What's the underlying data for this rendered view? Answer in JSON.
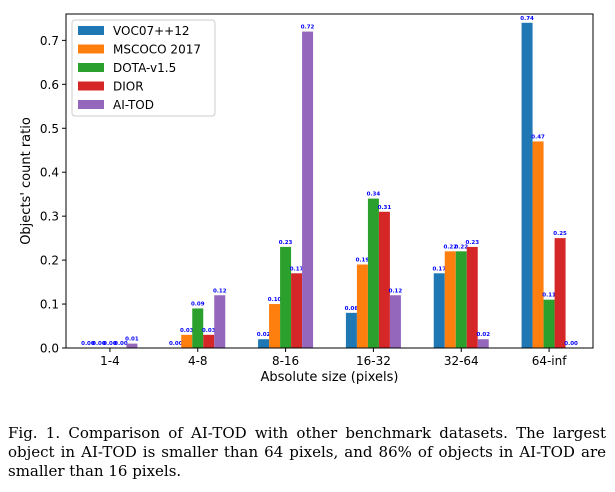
{
  "chart_data": {
    "type": "bar",
    "xlabel": "Absolute size (pixels)",
    "ylabel": "Objects' count ratio",
    "ylim": [
      0,
      0.76
    ],
    "yticks": [
      0.0,
      0.1,
      0.2,
      0.3,
      0.4,
      0.5,
      0.6,
      0.7
    ],
    "ytick_labels": [
      "0.0",
      "0.1",
      "0.2",
      "0.3",
      "0.4",
      "0.5",
      "0.6",
      "0.7"
    ],
    "legend_position": "top-left",
    "categories": [
      "1-4",
      "4-8",
      "8-16",
      "16-32",
      "32-64",
      "64-inf"
    ],
    "series": [
      {
        "name": "VOC07++12",
        "color": "#1f77b4",
        "values": [
          0.0,
          0.0,
          0.02,
          0.08,
          0.17,
          0.74
        ],
        "labels": [
          "0.00",
          "0.00",
          "0.02",
          "0.08",
          "0.17",
          "0.74"
        ]
      },
      {
        "name": "MSCOCO 2017",
        "color": "#ff7f0e",
        "values": [
          0.0,
          0.03,
          0.1,
          0.19,
          0.22,
          0.47
        ],
        "labels": [
          "0.00",
          "0.03",
          "0.10",
          "0.19",
          "0.22",
          "0.47"
        ]
      },
      {
        "name": "DOTA-v1.5",
        "color": "#2ca02c",
        "values": [
          0.0,
          0.09,
          0.23,
          0.34,
          0.22,
          0.11
        ],
        "labels": [
          "0.00",
          "0.09",
          "0.23",
          "0.34",
          "0.22",
          "0.11"
        ]
      },
      {
        "name": "DIOR",
        "color": "#d62728",
        "values": [
          0.0,
          0.03,
          0.17,
          0.31,
          0.23,
          0.25
        ],
        "labels": [
          "0.00",
          "0.03",
          "0.17",
          "0.31",
          "0.23",
          "0.25"
        ]
      },
      {
        "name": "AI-TOD",
        "color": "#9467bd",
        "values": [
          0.01,
          0.12,
          0.72,
          0.12,
          0.02,
          0.0
        ],
        "labels": [
          "0.01",
          "0.12",
          "0.72",
          "0.12",
          "0.02",
          "0.00"
        ]
      }
    ],
    "label_color": "#0000ff"
  },
  "caption": "Fig. 1.  Comparison of AI-TOD with other benchmark datasets. The largest object in AI-TOD is smaller than 64 pixels, and 86% of objects in AI-TOD are smaller than 16 pixels."
}
